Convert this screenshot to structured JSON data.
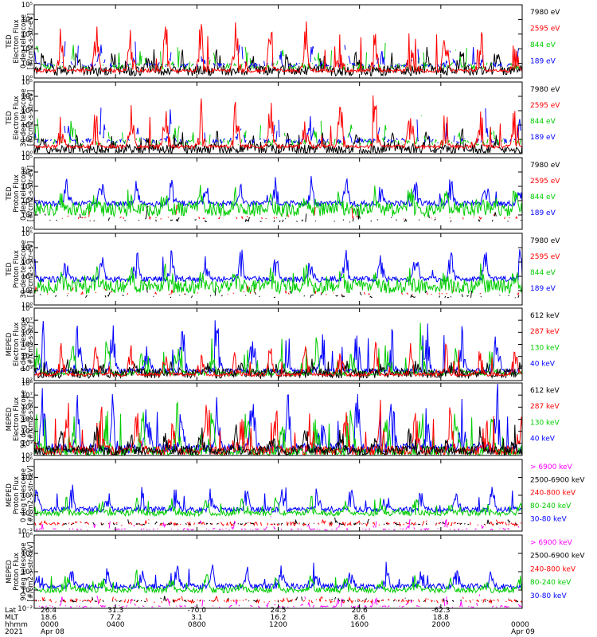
{
  "chart_data": [
    {
      "type": "line",
      "ylabel": [
        "TED",
        "Electron Flux",
        "0 deg telescope",
        "[#/cm2-s-str-eV]"
      ],
      "yscale": "log",
      "ylim_exp": [
        0,
        5
      ],
      "series": [
        {
          "name": "7980 eV",
          "color": "#000000"
        },
        {
          "name": "2595 eV",
          "color": "#ff0000"
        },
        {
          "name": "844 eV",
          "color": "#00cc00"
        },
        {
          "name": "189 eV",
          "color": "#0000ff"
        }
      ]
    },
    {
      "type": "line",
      "ylabel": [
        "TED",
        "Electron Flux",
        "30 deg telescope",
        "[#/cm2-s-str-eV]"
      ],
      "yscale": "log",
      "ylim_exp": [
        0,
        5
      ],
      "series": [
        {
          "name": "7980 eV",
          "color": "#000000"
        },
        {
          "name": "2595 eV",
          "color": "#ff0000"
        },
        {
          "name": "844 eV",
          "color": "#00cc00"
        },
        {
          "name": "189 eV",
          "color": "#0000ff"
        }
      ]
    },
    {
      "type": "line",
      "ylabel": [
        "TED",
        "Proton Flux",
        "0 deg telescope",
        "[#/cm2-s-str-eV]"
      ],
      "yscale": "log",
      "ylim_exp": [
        0,
        5
      ],
      "series": [
        {
          "name": "7980 eV",
          "color": "#000000"
        },
        {
          "name": "2595 eV",
          "color": "#ff0000"
        },
        {
          "name": "844 eV",
          "color": "#00cc00"
        },
        {
          "name": "189 eV",
          "color": "#0000ff"
        }
      ]
    },
    {
      "type": "line",
      "ylabel": [
        "TED",
        "Proton Flux",
        "30 deg telescope",
        "[#/cm2-s-str-eV]"
      ],
      "yscale": "log",
      "ylim_exp": [
        0,
        5
      ],
      "series": [
        {
          "name": "7980 eV",
          "color": "#000000"
        },
        {
          "name": "2595 eV",
          "color": "#ff0000"
        },
        {
          "name": "844 eV",
          "color": "#00cc00"
        },
        {
          "name": "189 eV",
          "color": "#0000ff"
        }
      ]
    },
    {
      "type": "line",
      "ylabel": [
        "MEPED",
        "Electron Flux",
        "0 deg telescope",
        "[#/cm2-s-str]"
      ],
      "yscale": "log",
      "ylim_exp": [
        2,
        8
      ],
      "series": [
        {
          "name": "612 keV",
          "color": "#000000"
        },
        {
          "name": "287 keV",
          "color": "#ff0000"
        },
        {
          "name": "130 keV",
          "color": "#00cc00"
        },
        {
          "name": "40 keV",
          "color": "#0000ff"
        }
      ]
    },
    {
      "type": "line",
      "ylabel": [
        "MEPED",
        "Electron Flux",
        "90 deg telescope",
        "[#/cm2-s-str]"
      ],
      "yscale": "log",
      "ylim_exp": [
        2,
        8
      ],
      "series": [
        {
          "name": "612 keV",
          "color": "#000000"
        },
        {
          "name": "287 keV",
          "color": "#ff0000"
        },
        {
          "name": "130 keV",
          "color": "#00cc00"
        },
        {
          "name": "40 keV",
          "color": "#0000ff"
        }
      ]
    },
    {
      "type": "line",
      "ylabel": [
        "MEPED",
        "Proton Flux",
        "0 deg telescope",
        "[#/cm2-s-str-keV]"
      ],
      "yscale": "log",
      "ylim_exp": [
        -2,
        6
      ],
      "series": [
        {
          "name": "> 6900 keV",
          "color": "#ff00ff"
        },
        {
          "name": "2500-6900 keV",
          "color": "#000000"
        },
        {
          "name": "240-800 keV",
          "color": "#ff0000"
        },
        {
          "name": "80-240 keV",
          "color": "#00cc00"
        },
        {
          "name": "30-80 keV",
          "color": "#0000ff"
        }
      ]
    },
    {
      "type": "line",
      "ylabel": [
        "MEPED",
        "Proton Flux",
        "90 deg telescope",
        "[#/cm2-s-str-keV]"
      ],
      "yscale": "log",
      "ylim_exp": [
        -2,
        6
      ],
      "series": [
        {
          "name": "> 6900 keV",
          "color": "#ff00ff"
        },
        {
          "name": "2500-6900 keV",
          "color": "#000000"
        },
        {
          "name": "240-800 keV",
          "color": "#ff0000"
        },
        {
          "name": "80-240 keV",
          "color": "#00cc00"
        },
        {
          "name": "30-80 keV",
          "color": "#0000ff"
        }
      ]
    }
  ],
  "footer": {
    "row_labels": [
      "Lat",
      "MLT",
      "hhmm",
      "2021"
    ],
    "columns": [
      {
        "lat": "26.4",
        "mlt": "18.6",
        "hhmm": "0000",
        "date": "Apr 08"
      },
      {
        "lat": "31.3",
        "mlt": "7.2",
        "hhmm": "0400",
        "date": ""
      },
      {
        "lat": "-70.0",
        "mlt": "3.1",
        "hhmm": "0800",
        "date": ""
      },
      {
        "lat": "24.5",
        "mlt": "16.2",
        "hhmm": "1200",
        "date": ""
      },
      {
        "lat": "20.6",
        "mlt": "8.6",
        "hhmm": "1600",
        "date": ""
      },
      {
        "lat": "-62.3",
        "mlt": "18.8",
        "hhmm": "2000",
        "date": ""
      },
      {
        "lat": "",
        "mlt": "",
        "hhmm": "0000",
        "date": "Apr 09"
      }
    ]
  }
}
